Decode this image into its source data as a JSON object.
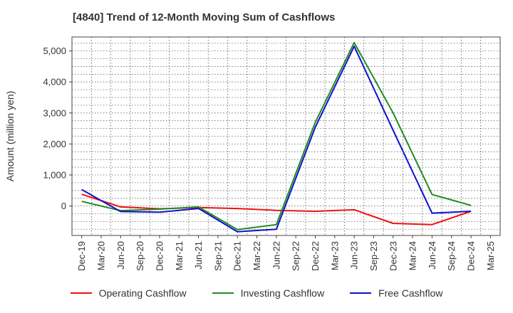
{
  "chart_data": {
    "type": "line",
    "title": "[4840]  Trend of 12-Month Moving Sum of Cashflows",
    "xlabel": "",
    "ylabel": "Amount (million yen)",
    "categories": [
      "Dec-19",
      "Mar-20",
      "Jun-20",
      "Sep-20",
      "Dec-20",
      "Mar-21",
      "Jun-21",
      "Sep-21",
      "Dec-21",
      "Mar-22",
      "Jun-22",
      "Sep-22",
      "Dec-22",
      "Mar-23",
      "Jun-23",
      "Sep-23",
      "Dec-23",
      "Mar-24",
      "Jun-24",
      "Sep-24",
      "Dec-24",
      "Mar-25"
    ],
    "yticks": [
      0,
      1000,
      2000,
      3000,
      4000,
      5000
    ],
    "ytick_labels": [
      "0",
      "1,000",
      "2,000",
      "3,000",
      "4,000",
      "5,000"
    ],
    "ylim": [
      -950,
      5450
    ],
    "grid": true,
    "legend_position": "bottom",
    "series": [
      {
        "name": "Operating Cashflow",
        "color": "#ee1111",
        "points": [
          {
            "x": "Dec-19",
            "y": 380
          },
          {
            "x": "Jun-20",
            "y": -30
          },
          {
            "x": "Dec-20",
            "y": -90
          },
          {
            "x": "Jun-21",
            "y": -50
          },
          {
            "x": "Dec-21",
            "y": -80
          },
          {
            "x": "Jun-22",
            "y": -140
          },
          {
            "x": "Dec-22",
            "y": -170
          },
          {
            "x": "Jun-23",
            "y": -120
          },
          {
            "x": "Dec-23",
            "y": -560
          },
          {
            "x": "Jun-24",
            "y": -600
          },
          {
            "x": "Dec-24",
            "y": -170
          }
        ]
      },
      {
        "name": "Investing Cashflow",
        "color": "#228b22",
        "points": [
          {
            "x": "Dec-19",
            "y": 150
          },
          {
            "x": "Jun-20",
            "y": -150
          },
          {
            "x": "Dec-20",
            "y": -100
          },
          {
            "x": "Jun-21",
            "y": -30
          },
          {
            "x": "Dec-21",
            "y": -760
          },
          {
            "x": "Jun-22",
            "y": -600
          },
          {
            "x": "Dec-22",
            "y": 2700
          },
          {
            "x": "Jun-23",
            "y": 5270
          },
          {
            "x": "Dec-23",
            "y": 3000
          },
          {
            "x": "Jun-24",
            "y": 370
          },
          {
            "x": "Dec-24",
            "y": 20
          }
        ]
      },
      {
        "name": "Free Cashflow",
        "color": "#1010cc",
        "points": [
          {
            "x": "Dec-19",
            "y": 530
          },
          {
            "x": "Jun-20",
            "y": -180
          },
          {
            "x": "Dec-20",
            "y": -200
          },
          {
            "x": "Jun-21",
            "y": -80
          },
          {
            "x": "Dec-21",
            "y": -830
          },
          {
            "x": "Jun-22",
            "y": -750
          },
          {
            "x": "Dec-22",
            "y": 2540
          },
          {
            "x": "Jun-23",
            "y": 5150
          },
          {
            "x": "Dec-23",
            "y": 2440
          },
          {
            "x": "Jun-24",
            "y": -230
          },
          {
            "x": "Dec-24",
            "y": -170
          }
        ]
      }
    ]
  }
}
